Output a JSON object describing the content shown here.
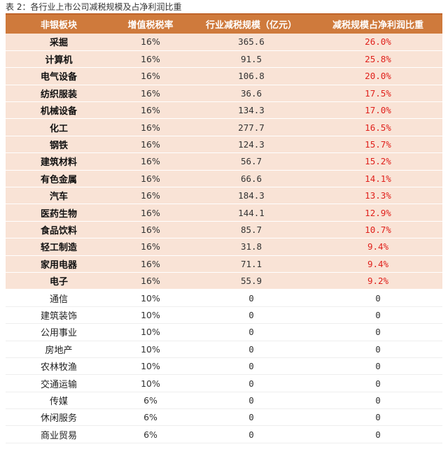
{
  "caption": "表 2：各行业上市公司减税规模及占净利润比重",
  "table": {
    "headers": [
      "非银板块",
      "增值税税率",
      "行业减税规模（亿元）",
      "减税规模占净利润比重"
    ],
    "rows": [
      {
        "name": "采掘",
        "rate": "16%",
        "scale": "365.6",
        "share": "26.0%",
        "tint": true
      },
      {
        "name": "计算机",
        "rate": "16%",
        "scale": "91.5",
        "share": "25.8%",
        "tint": true
      },
      {
        "name": "电气设备",
        "rate": "16%",
        "scale": "106.8",
        "share": "20.0%",
        "tint": true
      },
      {
        "name": "纺织服装",
        "rate": "16%",
        "scale": "36.6",
        "share": "17.5%",
        "tint": true
      },
      {
        "name": "机械设备",
        "rate": "16%",
        "scale": "134.3",
        "share": "17.0%",
        "tint": true
      },
      {
        "name": "化工",
        "rate": "16%",
        "scale": "277.7",
        "share": "16.5%",
        "tint": true
      },
      {
        "name": "钢铁",
        "rate": "16%",
        "scale": "124.3",
        "share": "15.7%",
        "tint": true
      },
      {
        "name": "建筑材料",
        "rate": "16%",
        "scale": "56.7",
        "share": "15.2%",
        "tint": true
      },
      {
        "name": "有色金属",
        "rate": "16%",
        "scale": "66.6",
        "share": "14.1%",
        "tint": true
      },
      {
        "name": "汽车",
        "rate": "16%",
        "scale": "184.3",
        "share": "13.3%",
        "tint": true
      },
      {
        "name": "医药生物",
        "rate": "16%",
        "scale": "144.1",
        "share": "12.9%",
        "tint": true
      },
      {
        "name": "食品饮料",
        "rate": "16%",
        "scale": "85.7",
        "share": "10.7%",
        "tint": true
      },
      {
        "name": "轻工制造",
        "rate": "16%",
        "scale": "31.8",
        "share": "9.4%",
        "tint": true
      },
      {
        "name": "家用电器",
        "rate": "16%",
        "scale": "71.1",
        "share": "9.4%",
        "tint": true
      },
      {
        "name": "电子",
        "rate": "16%",
        "scale": "55.9",
        "share": "9.2%",
        "tint": true
      },
      {
        "name": "通信",
        "rate": "10%",
        "scale": "0",
        "share": "0",
        "tint": false
      },
      {
        "name": "建筑装饰",
        "rate": "10%",
        "scale": "0",
        "share": "0",
        "tint": false
      },
      {
        "name": "公用事业",
        "rate": "10%",
        "scale": "0",
        "share": "0",
        "tint": false
      },
      {
        "name": "房地产",
        "rate": "10%",
        "scale": "0",
        "share": "0",
        "tint": false
      },
      {
        "name": "农林牧渔",
        "rate": "10%",
        "scale": "0",
        "share": "0",
        "tint": false
      },
      {
        "name": "交通运输",
        "rate": "10%",
        "scale": "0",
        "share": "0",
        "tint": false
      },
      {
        "name": "传媒",
        "rate": "6%",
        "scale": "0",
        "share": "0",
        "tint": false
      },
      {
        "name": "休闲服务",
        "rate": "6%",
        "scale": "0",
        "share": "0",
        "tint": false
      },
      {
        "name": "商业贸易",
        "rate": "6%",
        "scale": "0",
        "share": "0",
        "tint": false
      }
    ]
  },
  "colors": {
    "header_bg": "#cf7a3c",
    "row_tint": "#f9e3d6",
    "highlight_text": "#e0201b"
  }
}
